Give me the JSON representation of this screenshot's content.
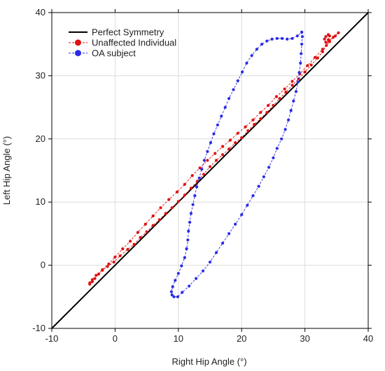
{
  "chart_data": {
    "type": "line",
    "xlabel": "Right Hip Angle (°)",
    "ylabel": "Left Hip Angle (°)",
    "xlim": [
      -10,
      40
    ],
    "ylim": [
      -10,
      40
    ],
    "x_ticks": [
      -10,
      0,
      10,
      20,
      30,
      40
    ],
    "y_ticks": [
      -10,
      0,
      10,
      20,
      30,
      40
    ],
    "grid": true,
    "legend_position": "top-left",
    "reference_line": {
      "name": "Perfect Symmetry",
      "color": "#000000",
      "points": [
        [
          -10,
          -10
        ],
        [
          40,
          40
        ]
      ]
    },
    "series": [
      {
        "name": "Unaffected Individual",
        "color": "#e01010",
        "points": [
          [
            -4,
            -3
          ],
          [
            -3.6,
            -2.6
          ],
          [
            -3.2,
            -2.1
          ],
          [
            -2.6,
            -1.4
          ],
          [
            -2,
            -0.8
          ],
          [
            -1.2,
            -0.2
          ],
          [
            -0.2,
            0.5
          ],
          [
            0.8,
            1.5
          ],
          [
            2,
            2.5
          ],
          [
            3,
            3.3
          ],
          [
            4,
            4.4
          ],
          [
            5,
            5.3
          ],
          [
            6,
            6.3
          ],
          [
            7,
            7.2
          ],
          [
            8,
            8.2
          ],
          [
            9,
            9.1
          ],
          [
            10,
            10.1
          ],
          [
            11,
            11.1
          ],
          [
            12,
            12.2
          ],
          [
            13,
            13.3
          ],
          [
            14,
            14.4
          ],
          [
            15,
            15.6
          ],
          [
            16,
            16.6
          ],
          [
            17,
            17.5
          ],
          [
            18,
            18.4
          ],
          [
            19,
            19.4
          ],
          [
            20,
            20.2
          ],
          [
            21,
            21.3
          ],
          [
            22,
            22.3
          ],
          [
            23,
            23.2
          ],
          [
            24,
            24.2
          ],
          [
            25,
            25.3
          ],
          [
            26,
            26.4
          ],
          [
            27,
            27.4
          ],
          [
            28,
            28.5
          ],
          [
            29,
            29.5
          ],
          [
            30,
            30.6
          ],
          [
            31,
            31.7
          ],
          [
            32,
            32.8
          ],
          [
            32.8,
            33.8
          ],
          [
            33.4,
            34.8
          ],
          [
            33.7,
            35.7
          ],
          [
            33.9,
            36.3
          ],
          [
            33.7,
            36.5
          ],
          [
            33.3,
            36.2
          ],
          [
            33.1,
            35.8
          ],
          [
            33.3,
            35.3
          ],
          [
            33.8,
            35.6
          ],
          [
            34.5,
            36.1
          ],
          [
            35.3,
            36.8
          ],
          [
            34.8,
            36.3
          ],
          [
            33.9,
            35.4
          ],
          [
            32.8,
            34.2
          ],
          [
            31.6,
            32.9
          ],
          [
            30.4,
            31.6
          ],
          [
            29.2,
            30.3
          ],
          [
            28,
            29.1
          ],
          [
            26.8,
            27.9
          ],
          [
            25.5,
            26.7
          ],
          [
            24.2,
            25.3
          ],
          [
            23,
            24.2
          ],
          [
            21.8,
            23
          ],
          [
            20.6,
            21.9
          ],
          [
            19.4,
            20.9
          ],
          [
            18.2,
            19.8
          ],
          [
            17,
            18.8
          ],
          [
            15.8,
            17.7
          ],
          [
            14.6,
            16.6
          ],
          [
            13.4,
            15.4
          ],
          [
            12.2,
            14.2
          ],
          [
            11,
            12.8
          ],
          [
            9.8,
            11.6
          ],
          [
            8.5,
            10.4
          ],
          [
            7.2,
            9.1
          ],
          [
            6,
            7.8
          ],
          [
            4.8,
            6.5
          ],
          [
            3.6,
            5.2
          ],
          [
            2.4,
            3.8
          ],
          [
            1.2,
            2.6
          ],
          [
            0,
            1.3
          ],
          [
            -1,
            0.2
          ],
          [
            -2,
            -0.7
          ],
          [
            -3,
            -1.6
          ],
          [
            -3.6,
            -2.3
          ],
          [
            -4,
            -2.8
          ]
        ]
      },
      {
        "name": "OA subject",
        "color": "#2a2ae8",
        "points": [
          [
            29.5,
            36.9
          ],
          [
            29.6,
            36.2
          ],
          [
            29.5,
            35
          ],
          [
            29.4,
            33.5
          ],
          [
            29.3,
            32
          ],
          [
            29.1,
            30.5
          ],
          [
            28.9,
            29
          ],
          [
            28.6,
            27.5
          ],
          [
            28.2,
            26
          ],
          [
            27.8,
            24.5
          ],
          [
            27.4,
            23
          ],
          [
            26.9,
            21.5
          ],
          [
            26.3,
            20
          ],
          [
            25.6,
            18.5
          ],
          [
            25,
            17
          ],
          [
            24.3,
            15.5
          ],
          [
            23.5,
            14
          ],
          [
            22.7,
            12.5
          ],
          [
            21.8,
            11
          ],
          [
            20.9,
            9.5
          ],
          [
            20,
            8
          ],
          [
            19,
            6.5
          ],
          [
            18,
            5
          ],
          [
            17,
            3.5
          ],
          [
            16,
            2
          ],
          [
            15,
            0.5
          ],
          [
            13.9,
            -0.9
          ],
          [
            12.8,
            -2.1
          ],
          [
            11.7,
            -3.3
          ],
          [
            10.6,
            -4.3
          ],
          [
            9.9,
            -5
          ],
          [
            9.3,
            -5
          ],
          [
            9,
            -4.7
          ],
          [
            8.9,
            -4.2
          ],
          [
            9.1,
            -3.4
          ],
          [
            9.5,
            -2.4
          ],
          [
            10,
            -1.3
          ],
          [
            10.5,
            -0.1
          ],
          [
            11,
            1.2
          ],
          [
            11.3,
            2.6
          ],
          [
            11.5,
            4
          ],
          [
            11.6,
            5.4
          ],
          [
            11.8,
            6.8
          ],
          [
            12,
            8.2
          ],
          [
            12.3,
            9.6
          ],
          [
            12.6,
            11
          ],
          [
            12.9,
            12.4
          ],
          [
            13.3,
            13.8
          ],
          [
            13.7,
            15.2
          ],
          [
            14.1,
            16.6
          ],
          [
            14.6,
            18
          ],
          [
            15.1,
            19.4
          ],
          [
            15.6,
            20.8
          ],
          [
            16.2,
            22.2
          ],
          [
            16.8,
            23.6
          ],
          [
            17.4,
            25
          ],
          [
            18,
            26.4
          ],
          [
            18.7,
            27.8
          ],
          [
            19.4,
            29.2
          ],
          [
            20.1,
            30.6
          ],
          [
            20.8,
            32
          ],
          [
            21.6,
            33.2
          ],
          [
            22.4,
            34.2
          ],
          [
            23.2,
            35
          ],
          [
            24,
            35.5
          ],
          [
            24.8,
            35.8
          ],
          [
            25.6,
            35.9
          ],
          [
            26.4,
            35.9
          ],
          [
            27.2,
            35.8
          ],
          [
            28,
            35.9
          ],
          [
            28.8,
            36.3
          ],
          [
            29.5,
            36.9
          ]
        ]
      }
    ]
  }
}
